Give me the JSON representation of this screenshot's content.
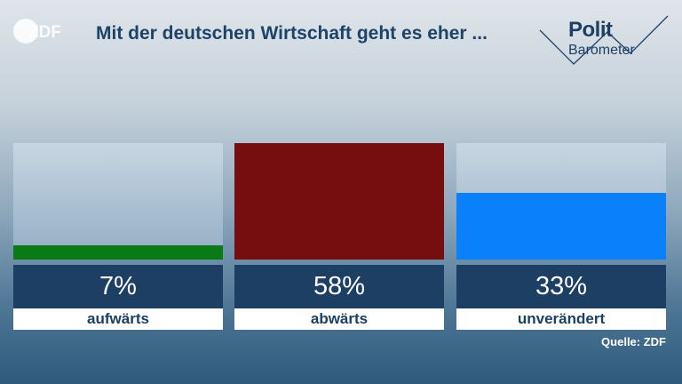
{
  "header": {
    "logo_text": "ZDF",
    "title": "Mit der deutschen Wirtschaft geht es eher ...",
    "brand_line1": "Polit",
    "brand_line2": "Barometer"
  },
  "chart_data": {
    "type": "bar",
    "title": "Mit der deutschen Wirtschaft geht es eher ...",
    "categories": [
      "aufwärts",
      "abwärts",
      "unverändert"
    ],
    "values": [
      7,
      58,
      33
    ],
    "labels": [
      "7%",
      "58%",
      "33%"
    ],
    "colors": [
      "#0a7a16",
      "#760d0f",
      "#0a80fb"
    ],
    "ylim": [
      0,
      58
    ],
    "grid": false,
    "legend": "none"
  },
  "footer": {
    "source": "Quelle: ZDF"
  }
}
